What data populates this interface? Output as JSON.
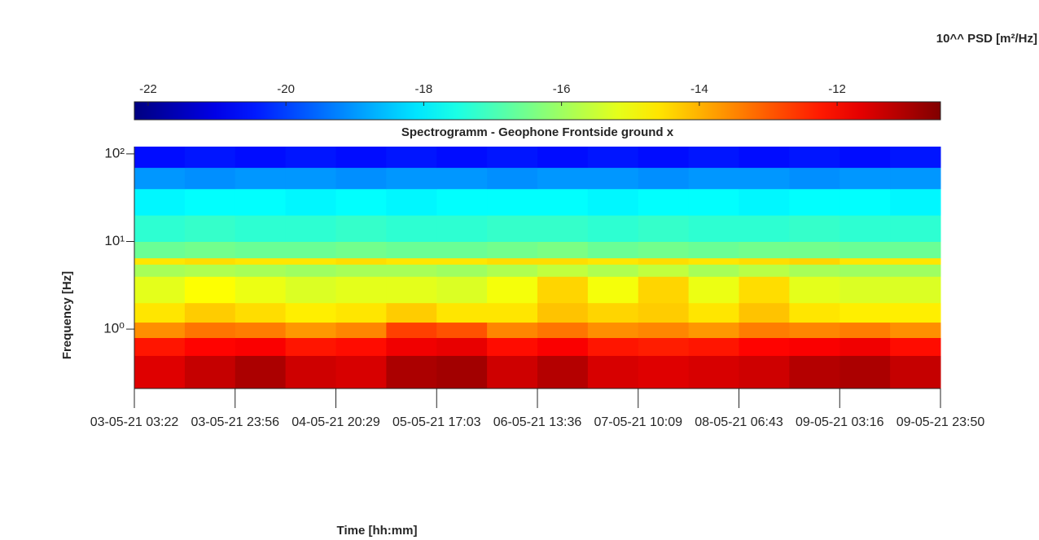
{
  "chart_data": {
    "type": "heatmap",
    "title": "Spectrogramm - Geophone Frontside ground x",
    "x_label": "Time [hh:mm]",
    "y_label": "Frequency [Hz]",
    "colorbar_label": "10^^ PSD [m²/Hz]",
    "colormap": "jet",
    "clim": [
      -22.2,
      -10.5
    ],
    "cticks": [
      -22,
      -20,
      -18,
      -16,
      -14,
      -12
    ],
    "categories": [
      "03-05-21 03:22",
      "03-05-21 23:56",
      "04-05-21 20:29",
      "05-05-21 17:03",
      "06-05-21 13:36",
      "07-05-21 10:09",
      "08-05-21 06:43",
      "09-05-21 03:16",
      "09-05-21 23:50"
    ],
    "y_scale": "log",
    "ylim": [
      0.21,
      121
    ],
    "yticks": [
      {
        "value": 1,
        "label": "10⁰"
      },
      {
        "value": 10,
        "label": "10¹"
      },
      {
        "value": 100,
        "label": "10²"
      }
    ],
    "y_bins": [
      0.21,
      0.5,
      0.8,
      1.2,
      2,
      4,
      5.5,
      6.5,
      10,
      20,
      40,
      70,
      121
    ],
    "z": [
      [
        -11.6,
        -11.3,
        -11.0,
        -11.4,
        -11.5,
        -11.0,
        -10.9,
        -11.4,
        -11.1,
        -11.5,
        -11.6,
        -11.5,
        -11.4,
        -11.1,
        -11.0,
        -11.3
      ],
      [
        -12.2,
        -12.0,
        -11.9,
        -12.2,
        -12.1,
        -11.8,
        -11.7,
        -12.1,
        -11.9,
        -12.2,
        -12.3,
        -12.2,
        -12.0,
        -11.9,
        -11.8,
        -12.1
      ],
      [
        -13.6,
        -13.3,
        -13.4,
        -13.7,
        -13.5,
        -12.7,
        -12.9,
        -13.5,
        -13.3,
        -13.6,
        -13.5,
        -13.7,
        -13.4,
        -13.5,
        -13.4,
        -13.6
      ],
      [
        -14.6,
        -14.3,
        -14.5,
        -14.7,
        -14.6,
        -14.3,
        -14.6,
        -14.6,
        -14.2,
        -14.4,
        -14.3,
        -14.6,
        -14.2,
        -14.6,
        -14.7,
        -14.7
      ],
      [
        -15.2,
        -14.9,
        -15.1,
        -15.3,
        -15.2,
        -15.2,
        -15.3,
        -15.0,
        -14.4,
        -15.0,
        -14.4,
        -15.1,
        -14.5,
        -15.2,
        -15.3,
        -15.3
      ],
      [
        -15.9,
        -15.8,
        -15.9,
        -16.0,
        -15.9,
        -15.9,
        -16.0,
        -15.8,
        -15.6,
        -15.8,
        -15.6,
        -15.9,
        -15.7,
        -15.9,
        -16.0,
        -16.0
      ],
      [
        -14.6,
        -14.5,
        -14.6,
        -14.6,
        -14.5,
        -14.6,
        -14.6,
        -14.5,
        -14.5,
        -14.6,
        -14.5,
        -14.6,
        -14.5,
        -14.4,
        -14.6,
        -14.6
      ],
      [
        -16.6,
        -16.5,
        -16.6,
        -16.6,
        -16.5,
        -16.6,
        -16.6,
        -16.5,
        -16.4,
        -16.6,
        -16.5,
        -16.6,
        -16.5,
        -16.5,
        -16.6,
        -16.6
      ],
      [
        -17.3,
        -17.2,
        -17.3,
        -17.3,
        -17.2,
        -17.3,
        -17.3,
        -17.2,
        -17.2,
        -17.3,
        -17.2,
        -17.3,
        -17.3,
        -17.2,
        -17.3,
        -17.3
      ],
      [
        -17.9,
        -17.8,
        -17.8,
        -17.9,
        -17.8,
        -17.9,
        -17.8,
        -17.8,
        -17.8,
        -17.9,
        -17.8,
        -17.8,
        -17.9,
        -17.8,
        -17.8,
        -17.9
      ],
      [
        -19.0,
        -19.1,
        -19.0,
        -19.0,
        -19.1,
        -19.0,
        -19.0,
        -19.1,
        -19.0,
        -19.0,
        -19.1,
        -19.0,
        -19.0,
        -19.1,
        -19.0,
        -19.0
      ],
      [
        -20.6,
        -20.5,
        -20.6,
        -20.5,
        -20.6,
        -20.5,
        -20.6,
        -20.5,
        -20.6,
        -20.5,
        -20.6,
        -20.5,
        -20.6,
        -20.5,
        -20.6,
        -20.5
      ]
    ]
  }
}
